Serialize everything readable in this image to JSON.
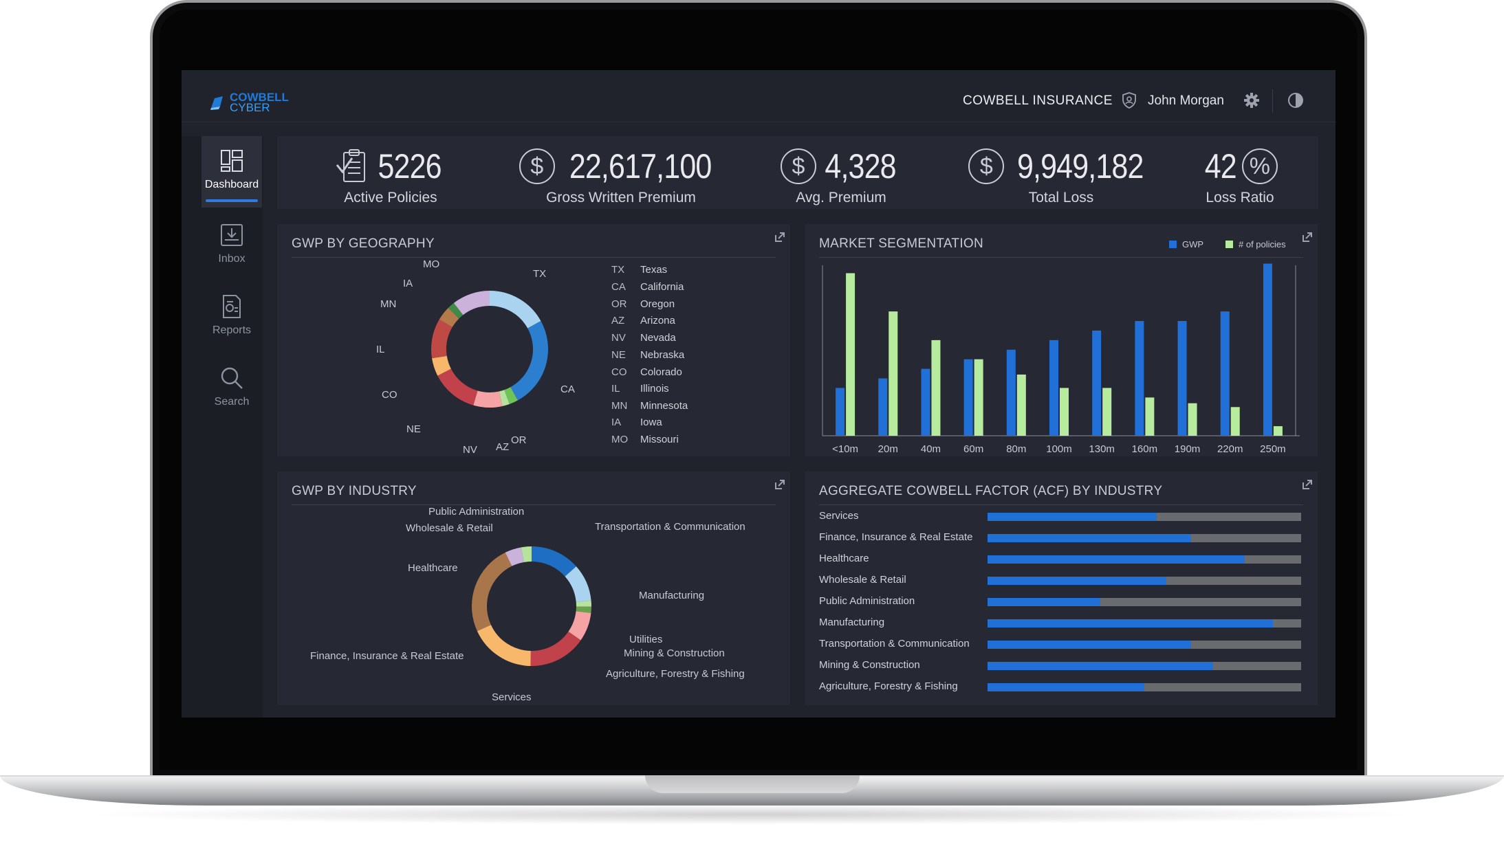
{
  "header": {
    "logo_line1": "COWBELL",
    "logo_line2": "CYBER",
    "company": "COWBELL INSURANCE",
    "user": "John Morgan"
  },
  "sidebar": {
    "items": [
      {
        "label": "Dashboard",
        "icon": "dashboard-icon",
        "active": true
      },
      {
        "label": "Inbox",
        "icon": "inbox-icon",
        "active": false
      },
      {
        "label": "Reports",
        "icon": "reports-icon",
        "active": false
      },
      {
        "label": "Search",
        "icon": "search-icon",
        "active": false
      }
    ]
  },
  "kpis": [
    {
      "value": "5226",
      "label": "Active Policies",
      "icon": "clipboard-check-icon"
    },
    {
      "value": "22,617,100",
      "label": "Gross Written Premium",
      "icon": "dollar-icon"
    },
    {
      "value": "4,328",
      "label": "Avg. Premium",
      "icon": "dollar-icon"
    },
    {
      "value": "9,949,182",
      "label": "Total Loss",
      "icon": "dollar-icon"
    },
    {
      "value": "42",
      "label": "Loss Ratio",
      "icon": "percent-icon",
      "symbol": "%"
    }
  ],
  "geo": {
    "title": "GWP BY GEOGRAPHY",
    "legend": [
      {
        "code": "TX",
        "name": "Texas"
      },
      {
        "code": "CA",
        "name": "California"
      },
      {
        "code": "OR",
        "name": "Oregon"
      },
      {
        "code": "AZ",
        "name": "Arizona"
      },
      {
        "code": "NV",
        "name": "Nevada"
      },
      {
        "code": "NE",
        "name": "Nebraska"
      },
      {
        "code": "CO",
        "name": "Colorado"
      },
      {
        "code": "IL",
        "name": "Illinois"
      },
      {
        "code": "MN",
        "name": "Minnesota"
      },
      {
        "code": "IA",
        "name": "Iowa"
      },
      {
        "code": "MO",
        "name": "Missouri"
      }
    ]
  },
  "market": {
    "title": "MARKET SEGMENTATION",
    "legend_gwp": "GWP",
    "legend_policies": "# of policies"
  },
  "industry": {
    "title": "GWP BY INDUSTRY"
  },
  "acf": {
    "title": "AGGREGATE COWBELL FACTOR (ACF) BY INDUSTRY",
    "rows": [
      {
        "label": "Services",
        "value": 0.54
      },
      {
        "label": "Finance, Insurance & Real Estate",
        "value": 0.65
      },
      {
        "label": "Healthcare",
        "value": 0.82
      },
      {
        "label": "Wholesale & Retail",
        "value": 0.57
      },
      {
        "label": "Public Administration",
        "value": 0.36
      },
      {
        "label": "Manufacturing",
        "value": 0.91
      },
      {
        "label": "Transportation & Communication",
        "value": 0.65
      },
      {
        "label": "Mining & Construction",
        "value": 0.72
      },
      {
        "label": "Agriculture, Forestry & Fishing",
        "value": 0.5
      }
    ]
  },
  "chart_data": [
    {
      "type": "pie",
      "title": "GWP BY GEOGRAPHY",
      "categories": [
        "TX",
        "CA",
        "OR",
        "AZ",
        "NV",
        "NE",
        "CO",
        "IL",
        "MN",
        "IA",
        "MO"
      ],
      "values": [
        17,
        25,
        2.5,
        2,
        8,
        13,
        5,
        11,
        4,
        2,
        10.5
      ],
      "colors": [
        "#a9d3ef",
        "#2c7fcf",
        "#6ec456",
        "#b7e29d",
        "#f6a3a6",
        "#c2424b",
        "#f7b86b",
        "#bf4a45",
        "#b57a4a",
        "#3f8a44",
        "#cbb2db"
      ]
    },
    {
      "type": "bar",
      "title": "MARKET SEGMENTATION",
      "categories": [
        "<10m",
        "20m",
        "40m",
        "60m",
        "80m",
        "100m",
        "130m",
        "160m",
        "190m",
        "220m",
        "250m"
      ],
      "series": [
        {
          "name": "GWP",
          "color": "#2170d8",
          "values": [
            25,
            30,
            35,
            40,
            45,
            50,
            55,
            60,
            60,
            65,
            90
          ]
        },
        {
          "name": "# of policies",
          "color": "#b7ec9f",
          "values": [
            85,
            65,
            50,
            40,
            32,
            25,
            25,
            20,
            17,
            15,
            5
          ]
        }
      ],
      "ylim": [
        0,
        92
      ]
    },
    {
      "type": "pie",
      "title": "GWP BY INDUSTRY",
      "categories": [
        "Transportation & Communication",
        "Manufacturing",
        "Utilities",
        "Mining & Construction",
        "Agriculture, Forestry & Fishing",
        "Services",
        "Finance, Insurance & Real Estate",
        "Healthcare",
        "Wholesale & Retail",
        "Public Administration"
      ],
      "values": [
        12,
        9,
        1.5,
        1.5,
        7,
        14,
        16,
        22,
        4,
        2.5
      ],
      "colors": [
        "#1e6fc4",
        "#a9d3ef",
        "#b7e29d",
        "#6aa24a",
        "#f6a3a6",
        "#c2424b",
        "#f7b86b",
        "#a9754b",
        "#cbb2db",
        "#b7e29d"
      ]
    },
    {
      "type": "bar",
      "title": "AGGREGATE COWBELL FACTOR (ACF) BY INDUSTRY",
      "categories": [
        "Services",
        "Finance, Insurance & Real Estate",
        "Healthcare",
        "Wholesale & Retail",
        "Public Administration",
        "Manufacturing",
        "Transportation & Communication",
        "Mining & Construction",
        "Agriculture, Forestry & Fishing"
      ],
      "values": [
        0.54,
        0.65,
        0.82,
        0.57,
        0.36,
        0.91,
        0.65,
        0.72,
        0.5
      ],
      "ylim": [
        0,
        1
      ]
    }
  ]
}
